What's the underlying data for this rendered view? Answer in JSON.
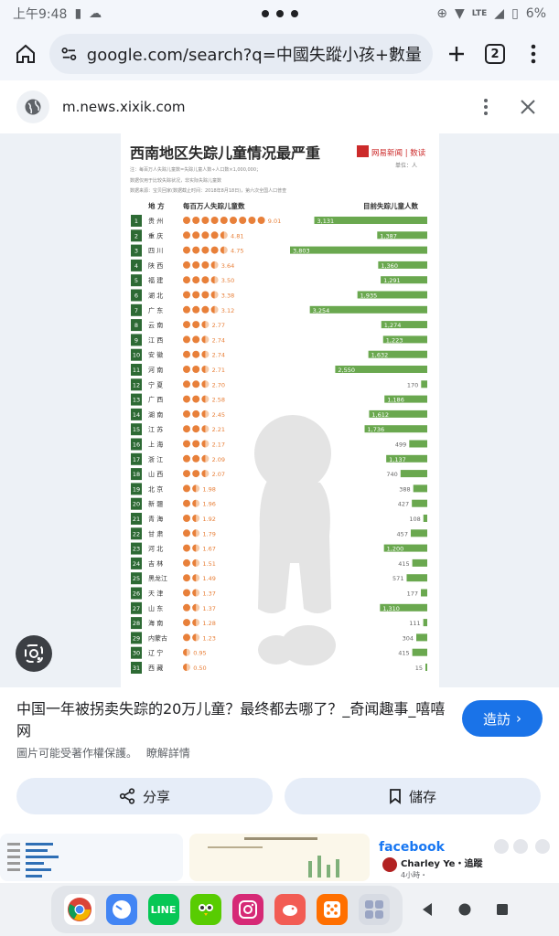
{
  "status": {
    "time": "上午9:48",
    "battery": "6%",
    "network": "LTE"
  },
  "browser": {
    "url": "google.com/search?q=中國失蹤小孩+數量&c",
    "tab_count": "2"
  },
  "site": {
    "domain": "m.news.xixik.com"
  },
  "infographic": {
    "title": "西南地区失踪儿童情况最严重",
    "brand": "网易新闻 | 数读",
    "unit": "单位：人",
    "note1": "注：每百万人失踪儿童数=失踪儿童人数÷人口数×1,000,000；",
    "note2": "数据仅用于比较失踪状况，非实际失踪儿童数",
    "note3": "数据来源：宝贝回家(数据截止时间：2018年8月18日)，第六次全国人口普查",
    "col_region": "地 方",
    "col_per_million": "每百万人失踪儿童数",
    "col_count": "目前失踪儿童人数",
    "rows": [
      {
        "rank": "1",
        "name": "贵 州",
        "rate": "9.01",
        "count": "3,131",
        "rate_num": 9.01,
        "count_num": 3131
      },
      {
        "rank": "2",
        "name": "重 庆",
        "rate": "4.81",
        "count": "1,387",
        "rate_num": 4.81,
        "count_num": 1387
      },
      {
        "rank": "3",
        "name": "四 川",
        "rate": "4.75",
        "count": "3,803",
        "rate_num": 4.75,
        "count_num": 3803
      },
      {
        "rank": "4",
        "name": "陕 西",
        "rate": "3.64",
        "count": "1,360",
        "rate_num": 3.64,
        "count_num": 1360
      },
      {
        "rank": "5",
        "name": "福 建",
        "rate": "3.50",
        "count": "1,291",
        "rate_num": 3.5,
        "count_num": 1291
      },
      {
        "rank": "6",
        "name": "湖 北",
        "rate": "3.38",
        "count": "1,935",
        "rate_num": 3.38,
        "count_num": 1935
      },
      {
        "rank": "7",
        "name": "广 东",
        "rate": "3.12",
        "count": "3,254",
        "rate_num": 3.12,
        "count_num": 3254
      },
      {
        "rank": "8",
        "name": "云 南",
        "rate": "2.77",
        "count": "1,274",
        "rate_num": 2.77,
        "count_num": 1274
      },
      {
        "rank": "9",
        "name": "江 西",
        "rate": "2.74",
        "count": "1,223",
        "rate_num": 2.74,
        "count_num": 1223
      },
      {
        "rank": "10",
        "name": "安 徽",
        "rate": "2.74",
        "count": "1,632",
        "rate_num": 2.74,
        "count_num": 1632
      },
      {
        "rank": "11",
        "name": "河 南",
        "rate": "2.71",
        "count": "2,550",
        "rate_num": 2.71,
        "count_num": 2550
      },
      {
        "rank": "12",
        "name": "宁 夏",
        "rate": "2.70",
        "count": "170",
        "rate_num": 2.7,
        "count_num": 170
      },
      {
        "rank": "13",
        "name": "广 西",
        "rate": "2.58",
        "count": "1,186",
        "rate_num": 2.58,
        "count_num": 1186
      },
      {
        "rank": "14",
        "name": "湖 南",
        "rate": "2.45",
        "count": "1,612",
        "rate_num": 2.45,
        "count_num": 1612
      },
      {
        "rank": "15",
        "name": "江 苏",
        "rate": "2.21",
        "count": "1,736",
        "rate_num": 2.21,
        "count_num": 1736
      },
      {
        "rank": "16",
        "name": "上 海",
        "rate": "2.17",
        "count": "499",
        "rate_num": 2.17,
        "count_num": 499
      },
      {
        "rank": "17",
        "name": "浙 江",
        "rate": "2.09",
        "count": "1,137",
        "rate_num": 2.09,
        "count_num": 1137
      },
      {
        "rank": "18",
        "name": "山 西",
        "rate": "2.07",
        "count": "740",
        "rate_num": 2.07,
        "count_num": 740
      },
      {
        "rank": "19",
        "name": "北 京",
        "rate": "1.98",
        "count": "388",
        "rate_num": 1.98,
        "count_num": 388
      },
      {
        "rank": "20",
        "name": "新 疆",
        "rate": "1.96",
        "count": "427",
        "rate_num": 1.96,
        "count_num": 427
      },
      {
        "rank": "21",
        "name": "青 海",
        "rate": "1.92",
        "count": "108",
        "rate_num": 1.92,
        "count_num": 108
      },
      {
        "rank": "22",
        "name": "甘 肃",
        "rate": "1.79",
        "count": "457",
        "rate_num": 1.79,
        "count_num": 457
      },
      {
        "rank": "23",
        "name": "河 北",
        "rate": "1.67",
        "count": "1,200",
        "rate_num": 1.67,
        "count_num": 1200
      },
      {
        "rank": "24",
        "name": "吉 林",
        "rate": "1.51",
        "count": "415",
        "rate_num": 1.51,
        "count_num": 415
      },
      {
        "rank": "25",
        "name": "黑龙江",
        "rate": "1.49",
        "count": "571",
        "rate_num": 1.49,
        "count_num": 571
      },
      {
        "rank": "26",
        "name": "天 津",
        "rate": "1.37",
        "count": "177",
        "rate_num": 1.37,
        "count_num": 177
      },
      {
        "rank": "27",
        "name": "山 东",
        "rate": "1.37",
        "count": "1,310",
        "rate_num": 1.37,
        "count_num": 1310
      },
      {
        "rank": "28",
        "name": "海 南",
        "rate": "1.28",
        "count": "111",
        "rate_num": 1.28,
        "count_num": 111
      },
      {
        "rank": "29",
        "name": "内蒙古",
        "rate": "1.23",
        "count": "304",
        "rate_num": 1.23,
        "count_num": 304
      },
      {
        "rank": "30",
        "name": "辽 宁",
        "rate": "0.95",
        "count": "415",
        "rate_num": 0.95,
        "count_num": 415
      },
      {
        "rank": "31",
        "name": "西 藏",
        "rate": "0.50",
        "count": "15",
        "rate_num": 0.5,
        "count_num": 15
      }
    ]
  },
  "result": {
    "title": "中国一年被拐卖失踪的20万儿童？最终都去哪了？_奇闻趣事_嘻嘻网",
    "visit_label": "造訪",
    "copyright": "圖片可能受著作權保護。",
    "learn_more": "瞭解詳情",
    "share_label": "分享",
    "save_label": "儲存"
  },
  "thumbnails": {
    "facebook_brand": "facebook",
    "facebook_user": "Charley Ye・追蹤",
    "facebook_time": "4小時・"
  },
  "colors": {
    "accent_blue": "#1a73e8",
    "chart_green": "#6aa84f",
    "chart_dark_green": "#2d6a34",
    "chart_orange": "#e8803a"
  }
}
